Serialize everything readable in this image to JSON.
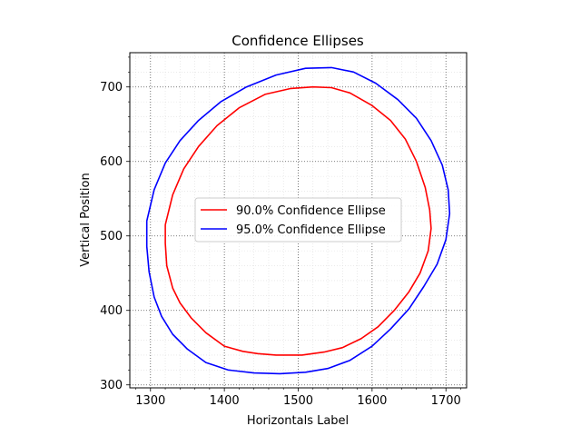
{
  "chart_data": {
    "type": "line",
    "title": "Confidence Ellipses",
    "xlabel": "Horizontals Label",
    "ylabel": "Vertical Position",
    "xlim": [
      1272,
      1728
    ],
    "ylim": [
      296,
      746
    ],
    "xticks": [
      1300,
      1400,
      1500,
      1600,
      1700
    ],
    "yticks": [
      300,
      400,
      500,
      600,
      700
    ],
    "xtick_labels": [
      "1300",
      "1400",
      "1500",
      "1600",
      "1700"
    ],
    "ytick_labels": [
      "300",
      "400",
      "500",
      "600",
      "700"
    ],
    "grid": true,
    "minor_grid": true,
    "legend_position": "center",
    "series": [
      {
        "name": "90.0% Confidence Ellipse",
        "color": "#ff0000",
        "x": [
          1320,
          1330,
          1345,
          1365,
          1390,
          1420,
          1455,
          1490,
          1520,
          1545,
          1570,
          1600,
          1625,
          1645,
          1660,
          1672,
          1678,
          1680,
          1676,
          1665,
          1650,
          1630,
          1608,
          1585,
          1560,
          1535,
          1505,
          1470,
          1445,
          1425,
          1400,
          1375,
          1355,
          1340,
          1330,
          1322,
          1320
        ],
        "y": [
          515,
          555,
          590,
          620,
          648,
          672,
          690,
          698,
          700,
          699,
          692,
          675,
          655,
          630,
          600,
          565,
          535,
          510,
          480,
          450,
          425,
          400,
          378,
          362,
          350,
          344,
          340,
          340,
          342,
          345,
          352,
          370,
          390,
          410,
          430,
          460,
          490
        ]
      },
      {
        "name": "95.0% Confidence Ellipse",
        "color": "#0000ff",
        "x": [
          1295,
          1305,
          1320,
          1340,
          1365,
          1395,
          1430,
          1470,
          1510,
          1545,
          1575,
          1605,
          1635,
          1660,
          1680,
          1695,
          1703,
          1705,
          1700,
          1688,
          1670,
          1650,
          1625,
          1600,
          1570,
          1540,
          1510,
          1475,
          1440,
          1405,
          1375,
          1350,
          1330,
          1315,
          1305,
          1298,
          1295
        ],
        "y": [
          520,
          562,
          598,
          628,
          655,
          680,
          700,
          716,
          725,
          726,
          720,
          705,
          683,
          658,
          628,
          595,
          562,
          530,
          495,
          462,
          432,
          402,
          375,
          352,
          333,
          322,
          317,
          315,
          316,
          320,
          330,
          348,
          368,
          392,
          418,
          452,
          486
        ]
      }
    ]
  }
}
